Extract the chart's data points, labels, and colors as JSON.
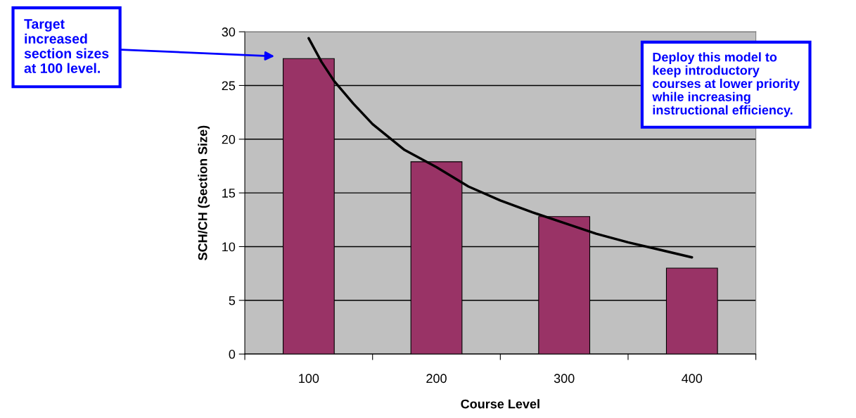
{
  "chart_data": {
    "type": "bar",
    "xlabel": "Course Level",
    "ylabel": "SCH/CH (Section Size)",
    "x": [
      100,
      200,
      300,
      400
    ],
    "series": [
      {
        "color": "#993366",
        "values": [
          27.5,
          17.9,
          12.8,
          8.0
        ]
      },
      {
        "type": "line",
        "color": "#000000",
        "x": [
          100,
          110,
          120,
          135,
          150,
          175,
          200,
          225,
          250,
          275,
          300,
          325,
          350,
          375,
          400
        ],
        "values": [
          29.4,
          27.2,
          25.4,
          23.3,
          21.4,
          19.0,
          17.4,
          15.6,
          14.3,
          13.2,
          12.2,
          11.2,
          10.4,
          9.7,
          9.0
        ]
      }
    ],
    "xlim": [
      50,
      450
    ],
    "xticks": [
      {
        "value": 50,
        "label": null
      },
      100,
      {
        "value": 150,
        "label": null
      },
      200,
      {
        "value": 250,
        "label": null
      },
      300,
      {
        "value": 350,
        "label": null
      },
      400,
      {
        "value": 450,
        "label": null
      }
    ],
    "ylim": [
      0,
      30
    ],
    "yticks": [
      0,
      5,
      10,
      15,
      20,
      25,
      30
    ],
    "grid": "y",
    "legend": false,
    "annotations": [
      "Target\nincreased\nsection sizes\nat 100 level.",
      "Deploy this model to\nkeep introductory\ncourses at lower priority\nwhile increasing\ninstructional efficiency."
    ]
  }
}
